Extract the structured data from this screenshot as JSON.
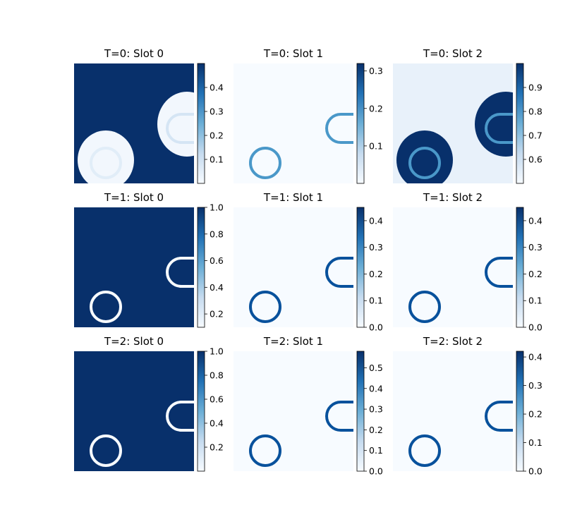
{
  "chart_data": [
    {
      "type": "heatmap",
      "title": "T=0: Slot 0",
      "background": "high",
      "colorbar": {
        "min": 0.0,
        "max": 0.5,
        "ticks": [
          "0.1",
          "0.2",
          "0.3",
          "0.4"
        ]
      },
      "colormap": "Blues"
    },
    {
      "type": "heatmap",
      "title": "T=0: Slot 1",
      "background": "low",
      "colorbar": {
        "min": 0.0,
        "max": 0.32,
        "ticks": [
          "0.1",
          "0.2",
          "0.3"
        ]
      },
      "colormap": "Blues"
    },
    {
      "type": "heatmap",
      "title": "T=0: Slot 2",
      "background": "low",
      "colorbar": {
        "min": 0.5,
        "max": 1.0,
        "ticks": [
          "0.6",
          "0.7",
          "0.8",
          "0.9"
        ]
      },
      "colormap": "Blues"
    },
    {
      "type": "heatmap",
      "title": "T=1: Slot 0",
      "background": "high",
      "colorbar": {
        "min": 0.1,
        "max": 1.0,
        "ticks": [
          "0.2",
          "0.4",
          "0.6",
          "0.8",
          "1.0"
        ]
      },
      "colormap": "Blues"
    },
    {
      "type": "heatmap",
      "title": "T=1: Slot 1",
      "background": "low",
      "colorbar": {
        "min": 0.0,
        "max": 0.45,
        "ticks": [
          "0.0",
          "0.1",
          "0.2",
          "0.3",
          "0.4"
        ]
      },
      "colormap": "Blues"
    },
    {
      "type": "heatmap",
      "title": "T=1: Slot 2",
      "background": "low",
      "colorbar": {
        "min": 0.0,
        "max": 0.45,
        "ticks": [
          "0.0",
          "0.1",
          "0.2",
          "0.3",
          "0.4"
        ]
      },
      "colormap": "Blues"
    },
    {
      "type": "heatmap",
      "title": "T=2: Slot 0",
      "background": "high",
      "colorbar": {
        "min": 0.0,
        "max": 1.0,
        "ticks": [
          "0.2",
          "0.4",
          "0.6",
          "0.8",
          "1.0"
        ]
      },
      "colormap": "Blues"
    },
    {
      "type": "heatmap",
      "title": "T=2: Slot 1",
      "background": "low",
      "colorbar": {
        "min": 0.0,
        "max": 0.58,
        "ticks": [
          "0.0",
          "0.1",
          "0.2",
          "0.3",
          "0.4",
          "0.5"
        ]
      },
      "colormap": "Blues"
    },
    {
      "type": "heatmap",
      "title": "T=2: Slot 2",
      "background": "low",
      "colorbar": {
        "min": 0.0,
        "max": 0.42,
        "ticks": [
          "0.0",
          "0.1",
          "0.2",
          "0.3",
          "0.4"
        ]
      },
      "colormap": "Blues"
    }
  ]
}
